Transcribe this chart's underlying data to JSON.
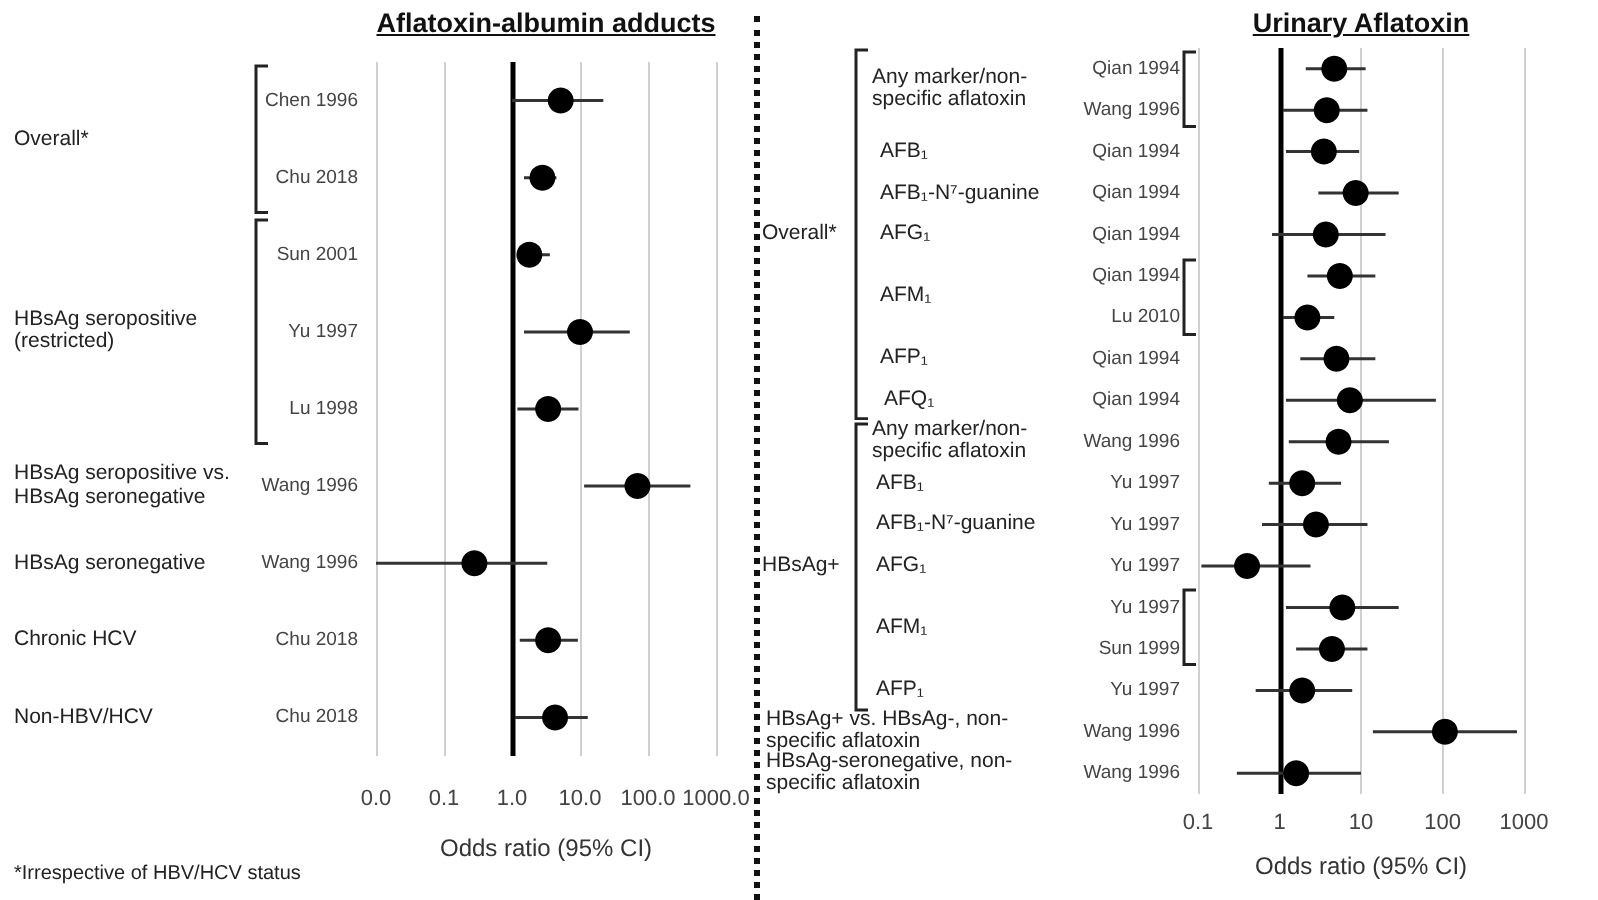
{
  "chart_data": [
    {
      "type": "scatter",
      "title": "Aflatoxin-albumin adducts",
      "xlabel": "Odds ratio (95% CI)",
      "orientation": "horizontal",
      "log": "x",
      "grid": "x",
      "marker": "circle",
      "color": "#000000",
      "categories": [
        "Chen 1996",
        "Chu 2018",
        "Sun 2001",
        "Yu 1997",
        "Lu 1998",
        "Wang 1996",
        "Wang 1996",
        "Chu 2018",
        "Chu 2018"
      ],
      "values": [
        5.2,
        2.8,
        1.8,
        10,
        3.4,
        70,
        0.28,
        3.4,
        4.3
      ],
      "errors": [
        [
          1.0,
          22
        ],
        [
          1.5,
          4.5
        ],
        [
          1.25,
          3.6
        ],
        [
          1.5,
          54
        ],
        [
          1.2,
          9.5
        ],
        [
          11.5,
          420
        ],
        [
          0.01,
          3.3
        ],
        [
          1.3,
          9.3
        ],
        [
          1.1,
          13
        ]
      ],
      "xlim": [
        0.01,
        1000
      ],
      "xticks": [
        {
          "value": 0.01,
          "label": "0.0"
        },
        0.1,
        {
          "value": 1,
          "label": "1.0"
        },
        {
          "value": 10,
          "label": "10.0"
        },
        {
          "value": 100,
          "label": "100.0"
        },
        {
          "value": 1000,
          "label": "1000.0"
        }
      ],
      "ref_lines": [
        {
          "axis": "x",
          "value": 1,
          "color": "#000000"
        }
      ],
      "annotations": [
        "Overall*",
        "HBsAg seropositive (restricted)",
        "HBsAg seropositive vs. HBsAg seronegative",
        "HBsAg seronegative",
        "Chronic HCV",
        "Non-HBV/HCV",
        "*Irrespective of HBV/HCV status"
      ]
    },
    {
      "type": "scatter",
      "title": "Urinary Aflatoxin",
      "xlabel": "Odds ratio (95% CI)",
      "orientation": "horizontal",
      "log": "x",
      "grid": "x",
      "marker": "circle",
      "color": "#000000",
      "categories": [
        "Qian 1994",
        "Wang 1996",
        "Qian 1994",
        "Qian 1994",
        "Qian 1994",
        "Qian 1994",
        "Lu 2010",
        "Qian 1994",
        "Qian 1994",
        "Wang 1996",
        "Yu 1997",
        "Yu 1997",
        "Yu 1997",
        "Yu 1997",
        "Sun 1999",
        "Yu 1997",
        "Wang 1996",
        "Wang 1996"
      ],
      "values": [
        4.7,
        3.8,
        3.5,
        8.6,
        3.7,
        5.5,
        2.2,
        5.0,
        7.3,
        5.3,
        1.9,
        2.8,
        0.4,
        5.9,
        4.4,
        1.9,
        107,
        1.6
      ],
      "errors": [
        [
          2.1,
          11.4
        ],
        [
          1.1,
          12
        ],
        [
          1.2,
          9.5
        ],
        [
          3.0,
          29
        ],
        [
          0.81,
          20
        ],
        [
          2.2,
          15
        ],
        [
          1.1,
          4.7
        ],
        [
          1.8,
          15
        ],
        [
          1.2,
          83
        ],
        [
          1.3,
          22
        ],
        [
          0.74,
          5.7
        ],
        [
          0.61,
          12
        ],
        [
          0.11,
          2.4
        ],
        [
          1.2,
          29
        ],
        [
          1.6,
          12
        ],
        [
          0.51,
          7.8
        ],
        [
          14,
          820
        ],
        [
          0.3,
          10
        ]
      ],
      "xlim": [
        0.1,
        1000
      ],
      "xticks": [
        0.1,
        1,
        10,
        100,
        1000
      ],
      "ref_lines": [
        {
          "axis": "x",
          "value": 1,
          "color": "#000000"
        }
      ],
      "annotations": [
        "Overall*",
        "HBsAg+",
        "HBsAg+ vs. HBsAg-, non-specific aflatoxin",
        "HBsAg-seronegative, non-specific aflatoxin",
        "Any marker/non-specific aflatoxin",
        "AFB₁",
        "AFB₁-N⁷-guanine",
        "AFG₁",
        "AFM₁",
        "AFP₁",
        "AFQ₁",
        "Any marker/non-specific aflatoxin",
        "AFB₁",
        "AFB₁-N⁷-guanine",
        "AFG₁",
        "AFM₁",
        "AFP₁"
      ]
    }
  ]
}
